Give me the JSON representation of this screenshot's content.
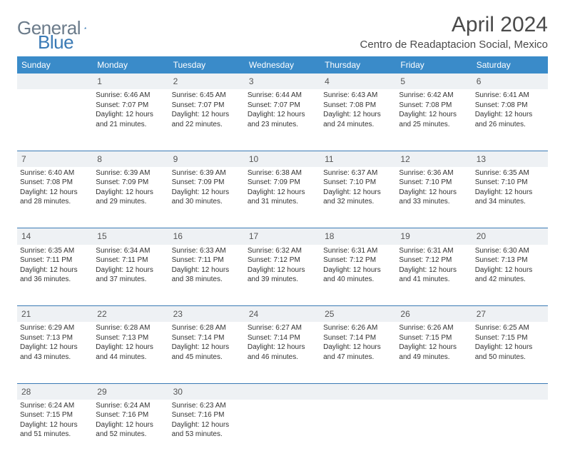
{
  "brand": {
    "part1": "General",
    "part2": "Blue",
    "grey": "#6b7b8a",
    "blue": "#3a7ab5"
  },
  "title": "April 2024",
  "location": "Centro de Readaptacion Social, Mexico",
  "colors": {
    "header_bg": "#3a8bc9",
    "header_text": "#ffffff",
    "daynum_bg": "#eef1f4",
    "border": "#3a7ab5",
    "text": "#333333",
    "background": "#ffffff"
  },
  "weekdays": [
    "Sunday",
    "Monday",
    "Tuesday",
    "Wednesday",
    "Thursday",
    "Friday",
    "Saturday"
  ],
  "weeks": [
    {
      "nums": [
        "",
        "1",
        "2",
        "3",
        "4",
        "5",
        "6"
      ],
      "cells": [
        {
          "empty": true
        },
        {
          "sunrise": "Sunrise: 6:46 AM",
          "sunset": "Sunset: 7:07 PM",
          "d1": "Daylight: 12 hours",
          "d2": "and 21 minutes."
        },
        {
          "sunrise": "Sunrise: 6:45 AM",
          "sunset": "Sunset: 7:07 PM",
          "d1": "Daylight: 12 hours",
          "d2": "and 22 minutes."
        },
        {
          "sunrise": "Sunrise: 6:44 AM",
          "sunset": "Sunset: 7:07 PM",
          "d1": "Daylight: 12 hours",
          "d2": "and 23 minutes."
        },
        {
          "sunrise": "Sunrise: 6:43 AM",
          "sunset": "Sunset: 7:08 PM",
          "d1": "Daylight: 12 hours",
          "d2": "and 24 minutes."
        },
        {
          "sunrise": "Sunrise: 6:42 AM",
          "sunset": "Sunset: 7:08 PM",
          "d1": "Daylight: 12 hours",
          "d2": "and 25 minutes."
        },
        {
          "sunrise": "Sunrise: 6:41 AM",
          "sunset": "Sunset: 7:08 PM",
          "d1": "Daylight: 12 hours",
          "d2": "and 26 minutes."
        }
      ]
    },
    {
      "nums": [
        "7",
        "8",
        "9",
        "10",
        "11",
        "12",
        "13"
      ],
      "cells": [
        {
          "sunrise": "Sunrise: 6:40 AM",
          "sunset": "Sunset: 7:08 PM",
          "d1": "Daylight: 12 hours",
          "d2": "and 28 minutes."
        },
        {
          "sunrise": "Sunrise: 6:39 AM",
          "sunset": "Sunset: 7:09 PM",
          "d1": "Daylight: 12 hours",
          "d2": "and 29 minutes."
        },
        {
          "sunrise": "Sunrise: 6:39 AM",
          "sunset": "Sunset: 7:09 PM",
          "d1": "Daylight: 12 hours",
          "d2": "and 30 minutes."
        },
        {
          "sunrise": "Sunrise: 6:38 AM",
          "sunset": "Sunset: 7:09 PM",
          "d1": "Daylight: 12 hours",
          "d2": "and 31 minutes."
        },
        {
          "sunrise": "Sunrise: 6:37 AM",
          "sunset": "Sunset: 7:10 PM",
          "d1": "Daylight: 12 hours",
          "d2": "and 32 minutes."
        },
        {
          "sunrise": "Sunrise: 6:36 AM",
          "sunset": "Sunset: 7:10 PM",
          "d1": "Daylight: 12 hours",
          "d2": "and 33 minutes."
        },
        {
          "sunrise": "Sunrise: 6:35 AM",
          "sunset": "Sunset: 7:10 PM",
          "d1": "Daylight: 12 hours",
          "d2": "and 34 minutes."
        }
      ]
    },
    {
      "nums": [
        "14",
        "15",
        "16",
        "17",
        "18",
        "19",
        "20"
      ],
      "cells": [
        {
          "sunrise": "Sunrise: 6:35 AM",
          "sunset": "Sunset: 7:11 PM",
          "d1": "Daylight: 12 hours",
          "d2": "and 36 minutes."
        },
        {
          "sunrise": "Sunrise: 6:34 AM",
          "sunset": "Sunset: 7:11 PM",
          "d1": "Daylight: 12 hours",
          "d2": "and 37 minutes."
        },
        {
          "sunrise": "Sunrise: 6:33 AM",
          "sunset": "Sunset: 7:11 PM",
          "d1": "Daylight: 12 hours",
          "d2": "and 38 minutes."
        },
        {
          "sunrise": "Sunrise: 6:32 AM",
          "sunset": "Sunset: 7:12 PM",
          "d1": "Daylight: 12 hours",
          "d2": "and 39 minutes."
        },
        {
          "sunrise": "Sunrise: 6:31 AM",
          "sunset": "Sunset: 7:12 PM",
          "d1": "Daylight: 12 hours",
          "d2": "and 40 minutes."
        },
        {
          "sunrise": "Sunrise: 6:31 AM",
          "sunset": "Sunset: 7:12 PM",
          "d1": "Daylight: 12 hours",
          "d2": "and 41 minutes."
        },
        {
          "sunrise": "Sunrise: 6:30 AM",
          "sunset": "Sunset: 7:13 PM",
          "d1": "Daylight: 12 hours",
          "d2": "and 42 minutes."
        }
      ]
    },
    {
      "nums": [
        "21",
        "22",
        "23",
        "24",
        "25",
        "26",
        "27"
      ],
      "cells": [
        {
          "sunrise": "Sunrise: 6:29 AM",
          "sunset": "Sunset: 7:13 PM",
          "d1": "Daylight: 12 hours",
          "d2": "and 43 minutes."
        },
        {
          "sunrise": "Sunrise: 6:28 AM",
          "sunset": "Sunset: 7:13 PM",
          "d1": "Daylight: 12 hours",
          "d2": "and 44 minutes."
        },
        {
          "sunrise": "Sunrise: 6:28 AM",
          "sunset": "Sunset: 7:14 PM",
          "d1": "Daylight: 12 hours",
          "d2": "and 45 minutes."
        },
        {
          "sunrise": "Sunrise: 6:27 AM",
          "sunset": "Sunset: 7:14 PM",
          "d1": "Daylight: 12 hours",
          "d2": "and 46 minutes."
        },
        {
          "sunrise": "Sunrise: 6:26 AM",
          "sunset": "Sunset: 7:14 PM",
          "d1": "Daylight: 12 hours",
          "d2": "and 47 minutes."
        },
        {
          "sunrise": "Sunrise: 6:26 AM",
          "sunset": "Sunset: 7:15 PM",
          "d1": "Daylight: 12 hours",
          "d2": "and 49 minutes."
        },
        {
          "sunrise": "Sunrise: 6:25 AM",
          "sunset": "Sunset: 7:15 PM",
          "d1": "Daylight: 12 hours",
          "d2": "and 50 minutes."
        }
      ]
    },
    {
      "nums": [
        "28",
        "29",
        "30",
        "",
        "",
        "",
        ""
      ],
      "cells": [
        {
          "sunrise": "Sunrise: 6:24 AM",
          "sunset": "Sunset: 7:15 PM",
          "d1": "Daylight: 12 hours",
          "d2": "and 51 minutes."
        },
        {
          "sunrise": "Sunrise: 6:24 AM",
          "sunset": "Sunset: 7:16 PM",
          "d1": "Daylight: 12 hours",
          "d2": "and 52 minutes."
        },
        {
          "sunrise": "Sunrise: 6:23 AM",
          "sunset": "Sunset: 7:16 PM",
          "d1": "Daylight: 12 hours",
          "d2": "and 53 minutes."
        },
        {
          "empty": true
        },
        {
          "empty": true
        },
        {
          "empty": true
        },
        {
          "empty": true
        }
      ]
    }
  ]
}
